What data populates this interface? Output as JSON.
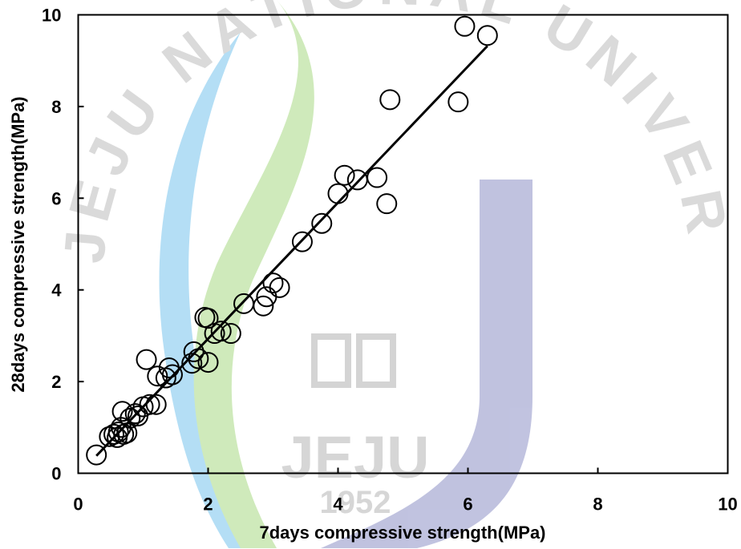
{
  "watermark": {
    "arc_text": "JEJU NATIONAL UNIVERSITY",
    "logo_text": "JEJU",
    "year_text": "1952",
    "colors": {
      "blue": "#4fb3e8",
      "green": "#8fcf5f",
      "purple": "#6c6fb5",
      "gray": "#b0b0b0"
    }
  },
  "chart_data": {
    "type": "scatter",
    "title": "",
    "xlabel": "7days compressive strength(MPa)",
    "ylabel": "28days compressive strength(MPa)",
    "xlim": [
      0,
      10
    ],
    "ylim": [
      0,
      10
    ],
    "xticks": [
      0,
      2,
      4,
      6,
      8,
      10
    ],
    "yticks": [
      0,
      2,
      4,
      6,
      8,
      10
    ],
    "grid": false,
    "marker": "open-circle",
    "series": [
      {
        "points": [
          [
            0.28,
            0.4
          ],
          [
            0.48,
            0.8
          ],
          [
            0.55,
            0.85
          ],
          [
            0.6,
            0.78
          ],
          [
            0.62,
            0.9
          ],
          [
            0.66,
            1.0
          ],
          [
            0.68,
            1.35
          ],
          [
            0.7,
            0.85
          ],
          [
            0.75,
            0.88
          ],
          [
            0.8,
            1.2
          ],
          [
            0.88,
            1.3
          ],
          [
            0.92,
            1.25
          ],
          [
            1.0,
            1.45
          ],
          [
            1.1,
            1.5
          ],
          [
            1.2,
            1.5
          ],
          [
            1.22,
            2.12
          ],
          [
            1.35,
            2.08
          ],
          [
            1.4,
            2.3
          ],
          [
            1.45,
            2.15
          ],
          [
            1.05,
            2.48
          ],
          [
            1.75,
            2.4
          ],
          [
            1.78,
            2.65
          ],
          [
            1.85,
            2.5
          ],
          [
            1.95,
            3.4
          ],
          [
            2.0,
            2.42
          ],
          [
            2.0,
            3.38
          ],
          [
            2.1,
            3.05
          ],
          [
            2.2,
            3.1
          ],
          [
            2.35,
            3.05
          ],
          [
            2.55,
            3.7
          ],
          [
            2.85,
            3.65
          ],
          [
            2.9,
            3.85
          ],
          [
            3.0,
            4.15
          ],
          [
            3.1,
            4.05
          ],
          [
            3.45,
            5.05
          ],
          [
            3.75,
            5.45
          ],
          [
            4.0,
            6.1
          ],
          [
            4.1,
            6.5
          ],
          [
            4.3,
            6.4
          ],
          [
            4.6,
            6.45
          ],
          [
            4.75,
            5.88
          ],
          [
            4.8,
            8.15
          ],
          [
            5.85,
            8.1
          ],
          [
            5.95,
            9.75
          ],
          [
            6.3,
            9.55
          ]
        ]
      }
    ],
    "fit_line": {
      "x": [
        0.28,
        6.3
      ],
      "y": [
        0.38,
        9.32
      ]
    }
  }
}
